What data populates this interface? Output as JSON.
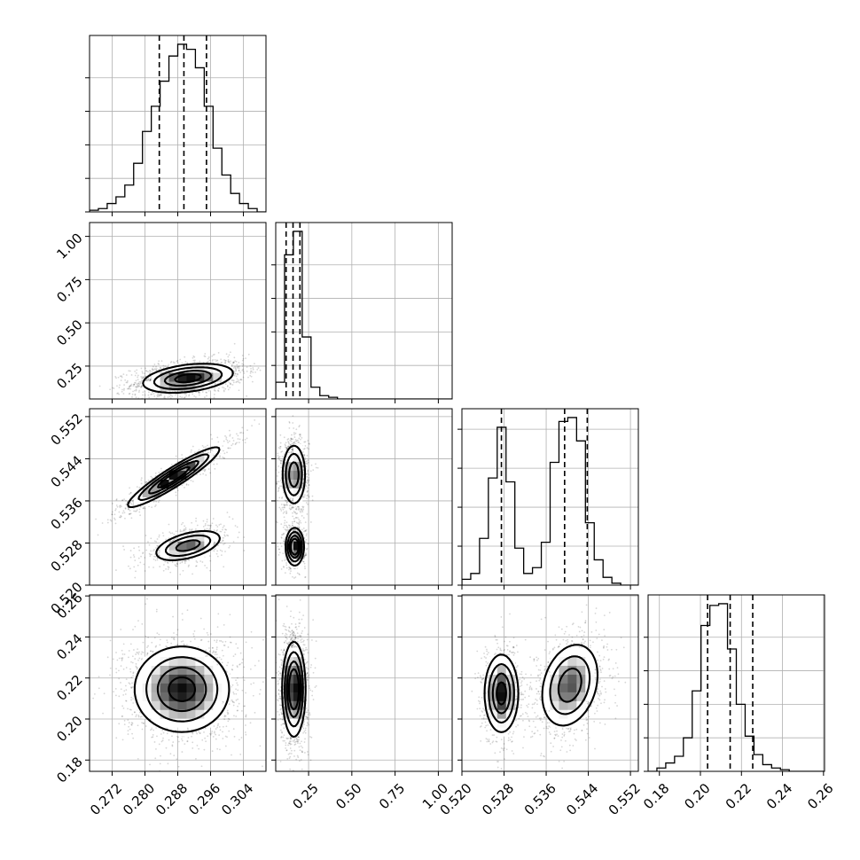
{
  "chart_data": {
    "type": "corner",
    "grid": true,
    "parameters": [
      {
        "ticks": [
          0.272,
          0.28,
          0.288,
          0.296,
          0.304
        ],
        "tick_labels": [
          "0.272",
          "0.280",
          "0.288",
          "0.296",
          "0.304"
        ],
        "range": [
          0.2665,
          0.3095
        ],
        "quantiles": [
          0.2835,
          0.2895,
          0.295
        ],
        "hist": {
          "edges_start": 0.2665,
          "bin_width": 0.00215,
          "values": [
            0.01,
            0.02,
            0.05,
            0.09,
            0.16,
            0.29,
            0.48,
            0.63,
            0.78,
            0.93,
            1.0,
            0.97,
            0.86,
            0.63,
            0.38,
            0.22,
            0.11,
            0.05,
            0.02,
            0.0
          ]
        }
      },
      {
        "ticks": [
          0.25,
          0.5,
          0.75,
          1.0
        ],
        "tick_labels": [
          "0.25",
          "0.50",
          "0.75",
          "1.00"
        ],
        "range": [
          0.06,
          1.08
        ],
        "quantiles": [
          0.12,
          0.16,
          0.2
        ],
        "hist": {
          "edges_start": 0.06,
          "bin_width": 0.051,
          "values": [
            0.1,
            0.86,
            1.0,
            0.37,
            0.07,
            0.02,
            0.01,
            0.0,
            0.0,
            0.0,
            0.0,
            0.0,
            0.0,
            0.0,
            0.0,
            0.0,
            0.0,
            0.0,
            0.0,
            0.0
          ]
        }
      },
      {
        "ticks": [
          0.52,
          0.528,
          0.536,
          0.544,
          0.552
        ],
        "tick_labels": [
          "0.520",
          "0.528",
          "0.536",
          "0.544",
          "0.552"
        ],
        "range": [
          0.52,
          0.5535
        ],
        "quantiles": [
          0.5275,
          0.5395,
          0.5438
        ],
        "hist": {
          "edges_start": 0.52,
          "bin_width": 0.001675,
          "values": [
            0.03,
            0.06,
            0.24,
            0.55,
            0.81,
            0.53,
            0.19,
            0.06,
            0.09,
            0.22,
            0.63,
            0.84,
            0.86,
            0.74,
            0.32,
            0.13,
            0.04,
            0.01,
            0.0,
            0.0
          ]
        }
      },
      {
        "ticks": [
          0.18,
          0.2,
          0.22,
          0.24,
          0.26
        ],
        "tick_labels": [
          "0.18",
          "0.20",
          "0.22",
          "0.24",
          "0.26"
        ],
        "range": [
          0.1745,
          0.2605
        ],
        "quantiles": [
          0.2035,
          0.2145,
          0.2255
        ],
        "hist": {
          "edges_start": 0.1745,
          "bin_width": 0.0043,
          "values": [
            0.0,
            0.02,
            0.05,
            0.09,
            0.2,
            0.48,
            0.87,
            0.99,
            1.0,
            0.73,
            0.4,
            0.21,
            0.1,
            0.04,
            0.02,
            0.01,
            0.0,
            0.0,
            0.0,
            0.0
          ]
        }
      }
    ],
    "joint": [
      {
        "row": 1,
        "col": 0,
        "components": [
          {
            "mean": [
              0.2905,
              0.18
            ],
            "sx": 0.0055,
            "sy": 0.042,
            "rho": 0.35,
            "w": 1.0
          }
        ]
      },
      {
        "row": 2,
        "col": 0,
        "components": [
          {
            "mean": [
              0.287,
              0.5405
            ],
            "sx": 0.0055,
            "sy": 0.0028,
            "rho": 0.93,
            "w": 0.6
          },
          {
            "mean": [
              0.2905,
              0.5275
            ],
            "sx": 0.0042,
            "sy": 0.0015,
            "rho": 0.5,
            "w": 0.4
          }
        ]
      },
      {
        "row": 2,
        "col": 1,
        "components": [
          {
            "mean": [
              0.165,
              0.541
            ],
            "sx": 0.034,
            "sy": 0.0029,
            "rho": 0.0,
            "w": 0.6
          },
          {
            "mean": [
              0.17,
              0.5273
            ],
            "sx": 0.025,
            "sy": 0.0017,
            "rho": 0.0,
            "w": 0.4
          }
        ]
      },
      {
        "row": 3,
        "col": 0,
        "components": [
          {
            "mean": [
              0.289,
              0.2145
            ],
            "sx": 0.0058,
            "sy": 0.0105,
            "rho": 0.0,
            "w": 1.0
          }
        ]
      },
      {
        "row": 3,
        "col": 1,
        "components": [
          {
            "mean": [
              0.165,
              0.2145
            ],
            "sx": 0.032,
            "sy": 0.011,
            "rho": 0.0,
            "w": 1.0
          }
        ]
      },
      {
        "row": 3,
        "col": 2,
        "components": [
          {
            "mean": [
              0.5275,
              0.2125
            ],
            "sx": 0.0016,
            "sy": 0.0095,
            "rho": 0.0,
            "w": 0.4
          },
          {
            "mean": [
              0.5405,
              0.2165
            ],
            "sx": 0.0028,
            "sy": 0.0105,
            "rho": 0.25,
            "w": 0.6
          }
        ]
      }
    ],
    "colors": {
      "line": "#000000",
      "grid": "#b0b0b0",
      "density": "#000000",
      "points": "#000000"
    }
  }
}
